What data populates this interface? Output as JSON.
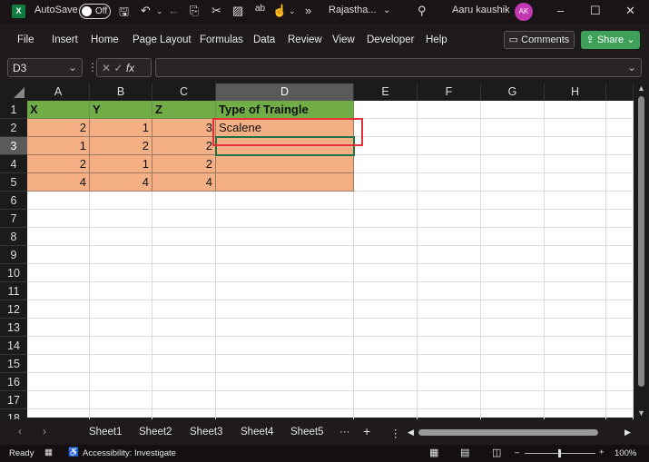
{
  "titlebar": {
    "autosave_label": "AutoSave",
    "autosave_state": "Off",
    "filename": "Rajastha...",
    "user": "Aaru kaushik",
    "avatar_initials": "AK",
    "avatar_color": "#c239b3"
  },
  "menu": {
    "items": [
      "File",
      "Insert",
      "Home",
      "Page Layout",
      "Formulas",
      "Data",
      "Review",
      "View",
      "Developer",
      "Help"
    ],
    "comments": "Comments",
    "share": "Share"
  },
  "formula_bar": {
    "name_box": "D3",
    "fx": "fx",
    "formula": ""
  },
  "sheet": {
    "columns": [
      "A",
      "B",
      "C",
      "D",
      "E",
      "F",
      "G",
      "H"
    ],
    "rows": [
      "1",
      "2",
      "3",
      "4",
      "5",
      "6",
      "7",
      "8",
      "9",
      "10",
      "11",
      "12",
      "13",
      "14",
      "15",
      "16",
      "17",
      "18"
    ],
    "cells": [
      [
        "X",
        "Y",
        "Z",
        "Type of Traingle"
      ],
      [
        "2",
        "1",
        "3",
        "Scalene"
      ],
      [
        "1",
        "2",
        "2",
        ""
      ],
      [
        "2",
        "1",
        "2",
        ""
      ],
      [
        "4",
        "4",
        "4",
        ""
      ]
    ],
    "selected_cell": "D3",
    "header_color": "#70ad47",
    "data_color": "#f4b084",
    "highlight_color": "#e0313a"
  },
  "sheet_tabs": [
    "Sheet1",
    "Sheet2",
    "Sheet3",
    "Sheet4",
    "Sheet5"
  ],
  "status": {
    "ready": "Ready",
    "accessibility": "Accessibility: Investigate",
    "zoom": "100%"
  }
}
